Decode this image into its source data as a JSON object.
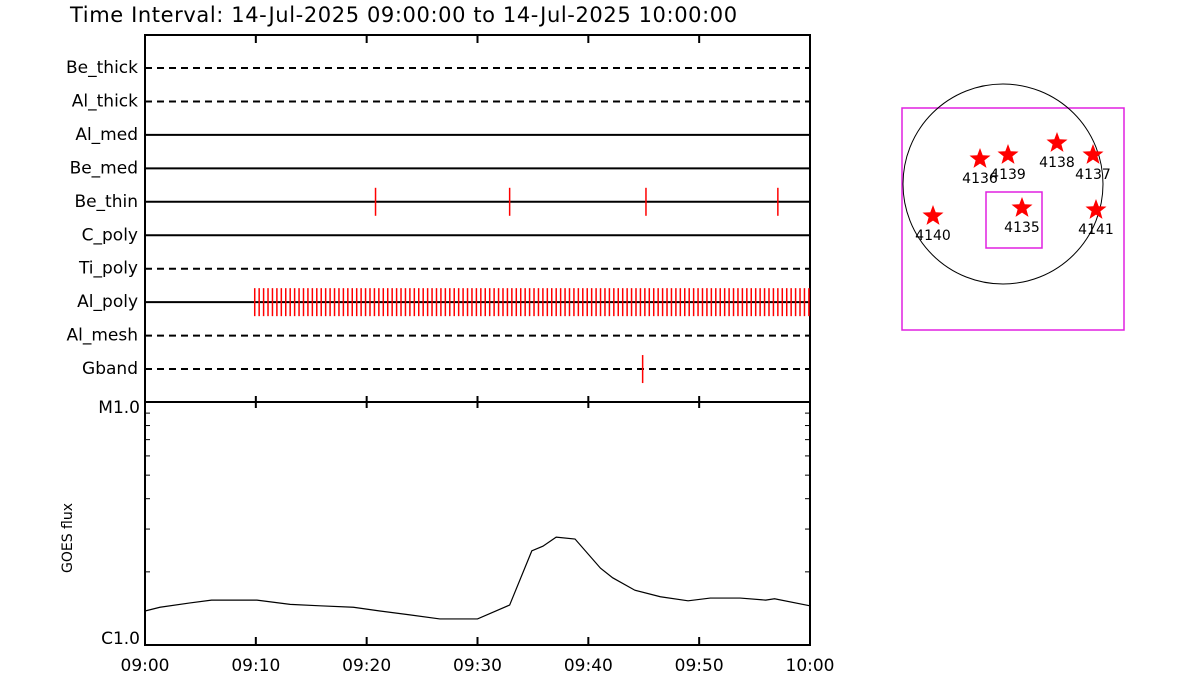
{
  "chart_data": [
    {
      "type": "timeline",
      "title": "Time Interval: 14-Jul-2025 09:00:00 to 14-Jul-2025 10:00:00",
      "xlim": [
        0,
        60
      ],
      "xticks": [
        0,
        10,
        20,
        30,
        40,
        50,
        60
      ],
      "series": [
        {
          "name": "Be_thick",
          "style": "dashed",
          "color": "#ff0000",
          "values": []
        },
        {
          "name": "Al_thick",
          "style": "dashed",
          "color": "#ff0000",
          "values": []
        },
        {
          "name": "Al_med",
          "style": "solid",
          "color": "#ff0000",
          "values": []
        },
        {
          "name": "Be_med",
          "style": "solid",
          "color": "#ff0000",
          "values": []
        },
        {
          "name": "Be_thin",
          "style": "solid",
          "color": "#ff0000",
          "values": [
            20.8,
            32.9,
            45.2,
            57.1
          ]
        },
        {
          "name": "C_poly",
          "style": "solid",
          "color": "#ff0000",
          "values": []
        },
        {
          "name": "Ti_poly",
          "style": "dashed",
          "color": "#ff0000",
          "values": []
        },
        {
          "name": "Al_poly",
          "style": "solid",
          "color": "#ff0000",
          "values": [
            9.9,
            10.3,
            10.7,
            11.1,
            11.5,
            11.9,
            12.3,
            12.7,
            13.1,
            13.5,
            13.9,
            14.3,
            14.7,
            15.1,
            15.5,
            15.9,
            16.3,
            16.7,
            17.1,
            17.5,
            17.9,
            18.3,
            18.7,
            19.1,
            19.5,
            19.9,
            20.3,
            20.7,
            21.1,
            21.5,
            21.9,
            22.3,
            22.7,
            23.1,
            23.5,
            23.9,
            24.3,
            24.7,
            25.1,
            25.5,
            25.9,
            26.3,
            26.7,
            27.1,
            27.5,
            27.9,
            28.3,
            28.7,
            29.1,
            29.5,
            29.9,
            30.3,
            30.7,
            31.1,
            31.5,
            31.9,
            32.3,
            32.7,
            33.1,
            33.5,
            33.9,
            34.3,
            34.7,
            35.1,
            35.5,
            35.9,
            36.3,
            36.7,
            37.1,
            37.5,
            37.9,
            38.3,
            38.7,
            39.1,
            39.5,
            39.9,
            40.3,
            40.7,
            41.1,
            41.5,
            41.9,
            42.3,
            42.7,
            43.1,
            43.5,
            43.9,
            44.3,
            44.7,
            45.1,
            45.5,
            45.9,
            46.3,
            46.7,
            47.1,
            47.5,
            47.9,
            48.3,
            48.7,
            49.1,
            49.5,
            49.9,
            50.3,
            50.7,
            51.1,
            51.5,
            51.9,
            52.3,
            52.7,
            53.1,
            53.5,
            53.9,
            54.3,
            54.7,
            55.1,
            55.5,
            55.9,
            56.3,
            56.7,
            57.1,
            57.5,
            57.9,
            58.3,
            58.7,
            59.1,
            59.5,
            59.9
          ]
        },
        {
          "name": "Al_mesh",
          "style": "dashed",
          "color": "#ff0000",
          "values": []
        },
        {
          "name": "Gband",
          "style": "dashed",
          "color": "#ff0000",
          "values": [
            44.9
          ]
        }
      ]
    },
    {
      "type": "line",
      "ylabel": "GOES flux",
      "log_scale": true,
      "color": "#000000",
      "xlim": [
        0,
        60
      ],
      "xticks": [
        {
          "value": 0,
          "label": "09:00"
        },
        {
          "value": 10,
          "label": "09:10"
        },
        {
          "value": 20,
          "label": "09:20"
        },
        {
          "value": 30,
          "label": "09:30"
        },
        {
          "value": 40,
          "label": "09:40"
        },
        {
          "value": 50,
          "label": "09:50"
        },
        {
          "value": 60,
          "label": "10:00"
        }
      ],
      "ylim": [
        1e-06,
        1e-05
      ],
      "yticks": [
        {
          "value": 1e-06,
          "label": "C1.0"
        },
        {
          "value": 1e-05,
          "label": "M1.0"
        }
      ],
      "yminorticks": [
        2e-06,
        3e-06,
        4e-06,
        5e-06,
        6e-06,
        7e-06,
        8e-06,
        9e-06
      ],
      "x": [
        0,
        1.35,
        4.06,
        6.0,
        10.1,
        13.1,
        15.8,
        18.8,
        21.2,
        23.9,
        26.6,
        30.0,
        32.9,
        34.9,
        35.9,
        37.1,
        38.8,
        41.1,
        42.2,
        44.2,
        46.5,
        49.0,
        51.0,
        53.7,
        56.0,
        56.8,
        60
      ],
      "values": [
        1.38e-06,
        1.43e-06,
        1.49e-06,
        1.53e-06,
        1.53e-06,
        1.47e-06,
        1.45e-06,
        1.43e-06,
        1.38e-06,
        1.33e-06,
        1.28e-06,
        1.28e-06,
        1.46e-06,
        2.44e-06,
        2.55e-06,
        2.78e-06,
        2.73e-06,
        2.07e-06,
        1.89e-06,
        1.68e-06,
        1.58e-06,
        1.52e-06,
        1.56e-06,
        1.56e-06,
        1.53e-06,
        1.55e-06,
        1.45e-06
      ]
    }
  ],
  "map": {
    "regions": [
      "4140",
      "4136",
      "4139",
      "4138",
      "4137",
      "4135",
      "4141"
    ]
  }
}
